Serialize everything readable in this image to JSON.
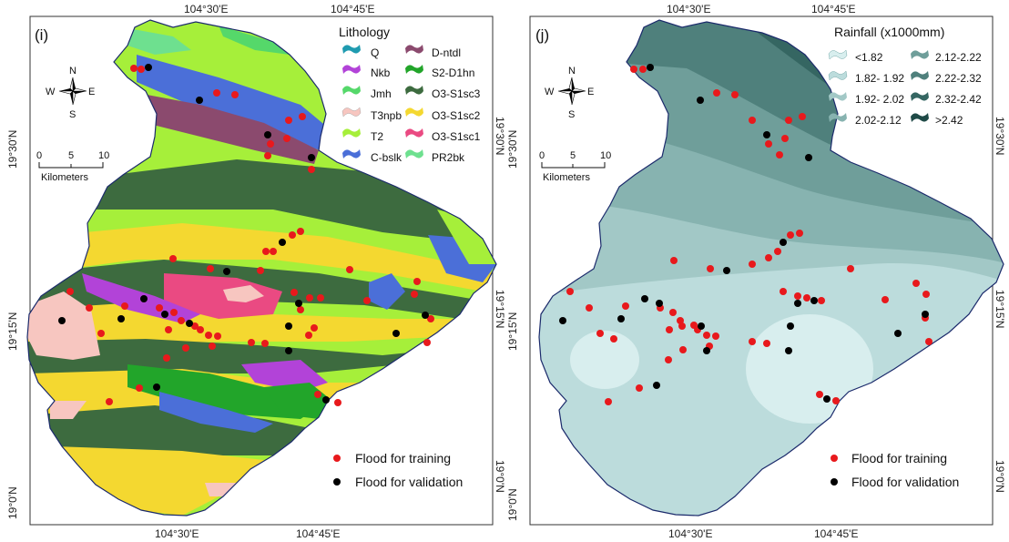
{
  "panels": [
    {
      "id": "i",
      "label": "(i)",
      "top_ticks": [
        "104°30'E",
        "104°45'E"
      ],
      "bottom_ticks": [
        "104°30'E",
        "104°45'E"
      ],
      "left_ticks": [
        "19°30'N",
        "19°15'N",
        "19°0'N"
      ],
      "right_ticks": [
        "19°30'N",
        "19°15'N",
        "19°0'N"
      ],
      "legend_title": "Lithology",
      "legend_items": [
        {
          "label": "Q",
          "color": "#1f9bb0"
        },
        {
          "label": "D-ntdl",
          "color": "#8b4a6e"
        },
        {
          "label": "Nkb",
          "color": "#b243d8"
        },
        {
          "label": "S2-D1hn",
          "color": "#22a52a"
        },
        {
          "label": "Jmh",
          "color": "#55d86a"
        },
        {
          "label": "O3-S1sc3",
          "color": "#3d6b3f"
        },
        {
          "label": "T3npb",
          "color": "#f7c6c0"
        },
        {
          "label": "O3-S1sc2",
          "color": "#f4d830"
        },
        {
          "label": "T2",
          "color": "#a6ef3a"
        },
        {
          "label": "O3-S1sc1",
          "color": "#ea4a82"
        },
        {
          "label": "C-bslk",
          "color": "#4b6fd8"
        },
        {
          "label": "PR2bk",
          "color": "#6ee08f"
        }
      ],
      "scale": {
        "ticks": [
          "0",
          "5",
          "10"
        ],
        "unit": "Kilometers"
      },
      "compass": {
        "n": "N",
        "s": "S",
        "e": "E",
        "w": "W"
      },
      "points_legend": [
        {
          "label": "Flood for training",
          "color": "#e8191c"
        },
        {
          "label": "Flood for validation",
          "color": "#000000"
        }
      ]
    },
    {
      "id": "j",
      "label": "(j)",
      "top_ticks": [
        "104°30'E",
        "104°45'E"
      ],
      "bottom_ticks": [
        "104°30'E",
        "104°45'E"
      ],
      "left_ticks": [
        "19°30'N",
        "19°15'N",
        "19°0'N"
      ],
      "right_ticks": [
        "19°30'N",
        "19°15'N",
        "19°0'N"
      ],
      "legend_title": "Rainfall (x1000mm)",
      "legend_items": [
        {
          "label": "<1.82",
          "color": "#d8eeee"
        },
        {
          "label": "2.12-2.22",
          "color": "#6f9e9a"
        },
        {
          "label": "1.82- 1.92",
          "color": "#bcdcdc"
        },
        {
          "label": "2.22-2.32",
          "color": "#4f807c"
        },
        {
          "label": "1.92- 2.02",
          "color": "#a2c8c6"
        },
        {
          "label": "2.32-2.42",
          "color": "#356662"
        },
        {
          "label": "2.02-2.12",
          "color": "#87b3b0"
        },
        {
          "label": ">2.42",
          "color": "#1f4a47"
        }
      ],
      "scale": {
        "ticks": [
          "0",
          "5",
          "10"
        ],
        "unit": "Kilometers"
      },
      "compass": {
        "n": "N",
        "s": "S",
        "e": "E",
        "w": "W"
      },
      "points_legend": [
        {
          "label": "Flood for training",
          "color": "#e8191c"
        },
        {
          "label": "Flood for validation",
          "color": "#000000"
        }
      ]
    }
  ]
}
